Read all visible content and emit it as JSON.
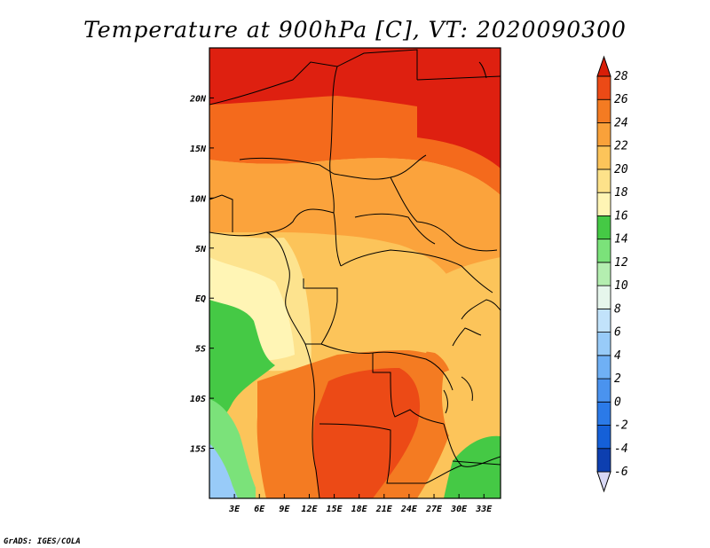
{
  "title": "Temperature at 900hPa [C], VT: 2020090300",
  "credit": "GrADS: IGES/COLA",
  "map": {
    "lon_range": [
      0,
      35
    ],
    "lat_range": [
      -20,
      25
    ],
    "x_ticks": [
      {
        "value": 3,
        "label": "3E"
      },
      {
        "value": 6,
        "label": "6E"
      },
      {
        "value": 9,
        "label": "9E"
      },
      {
        "value": 12,
        "label": "12E"
      },
      {
        "value": 15,
        "label": "15E"
      },
      {
        "value": 18,
        "label": "18E"
      },
      {
        "value": 21,
        "label": "21E"
      },
      {
        "value": 24,
        "label": "24E"
      },
      {
        "value": 27,
        "label": "27E"
      },
      {
        "value": 30,
        "label": "30E"
      },
      {
        "value": 33,
        "label": "33E"
      }
    ],
    "y_ticks": [
      {
        "value": 20,
        "label": "20N"
      },
      {
        "value": 15,
        "label": "15N"
      },
      {
        "value": 10,
        "label": "10N"
      },
      {
        "value": 5,
        "label": "5N"
      },
      {
        "value": 0,
        "label": "EQ"
      },
      {
        "value": -5,
        "label": "5S"
      },
      {
        "value": -10,
        "label": "10S"
      },
      {
        "value": -15,
        "label": "15S"
      }
    ]
  },
  "colorbar": {
    "levels": [
      "-6",
      "-4",
      "-2",
      "0",
      "2",
      "4",
      "6",
      "8",
      "10",
      "12",
      "14",
      "16",
      "18",
      "20",
      "22",
      "24",
      "26",
      "28"
    ],
    "colors": [
      "#0a1f66",
      "#0d3fb0",
      "#1560d8",
      "#2b7ae8",
      "#4a93ef",
      "#6fb0f5",
      "#98cbf8",
      "#c2e3fb",
      "#e6f6ec",
      "#b4eeb0",
      "#7be27a",
      "#45c945",
      "#fff5b5",
      "#fde28a",
      "#fcc45a",
      "#f9a13a",
      "#f47b22",
      "#ec4a16",
      "#d81e08"
    ]
  },
  "fields": [
    {
      "name": "temp-band-north",
      "color": "#de2010"
    },
    {
      "name": "temp-band-sahel",
      "color": "#f46a1c"
    },
    {
      "name": "temp-band-savanna",
      "color": "#fba33c"
    },
    {
      "name": "temp-band-forest",
      "color": "#fcc45a"
    },
    {
      "name": "temp-band-coast",
      "color": "#fde38e"
    },
    {
      "name": "temp-band-cool-west",
      "color": "#fff5b5"
    },
    {
      "name": "temp-band-green-west",
      "color": "#45c945"
    },
    {
      "name": "temp-band-light-green",
      "color": "#7be27a"
    },
    {
      "name": "temp-band-blue-sw",
      "color": "#98cbf8"
    },
    {
      "name": "temp-band-hot-south",
      "color": "#f47b22"
    },
    {
      "name": "temp-band-very-hot-south",
      "color": "#ec4a16"
    },
    {
      "name": "temp-band-rift",
      "color": "#fcc45a"
    },
    {
      "name": "temp-band-green-se",
      "color": "#45c945"
    }
  ]
}
